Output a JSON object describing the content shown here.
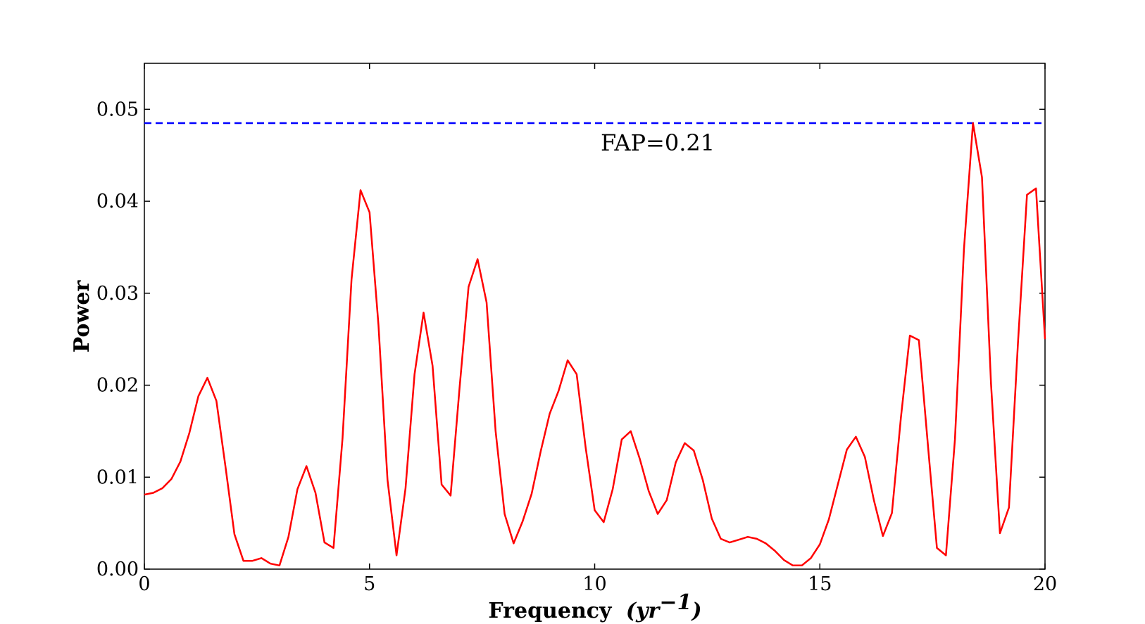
{
  "chart_data": {
    "type": "line",
    "xlabel": "Frequency",
    "xlabel_unit": "(yr",
    "xlabel_unit_sup": "−1",
    "xlabel_unit_close": ")",
    "ylabel": "Power",
    "xlim": [
      0,
      20
    ],
    "ylim": [
      0,
      0.055
    ],
    "xticks": [
      0,
      5,
      10,
      15,
      20
    ],
    "xtick_labels": [
      "0",
      "5",
      "10",
      "15",
      "20"
    ],
    "yticks": [
      0,
      0.01,
      0.02,
      0.03,
      0.04,
      0.05
    ],
    "ytick_labels": [
      "0.00",
      "0.01",
      "0.02",
      "0.03",
      "0.04",
      "0.05"
    ],
    "grid": false,
    "series": [
      {
        "color": "#ff0000",
        "x": [
          0,
          0.2,
          0.4,
          0.6,
          0.8,
          1.0,
          1.2,
          1.4,
          1.6,
          1.8,
          2.0,
          2.2,
          2.4,
          2.6,
          2.8,
          3.0,
          3.2,
          3.4,
          3.6,
          3.8,
          4.0,
          4.2,
          4.4,
          4.6,
          4.8,
          5.0,
          5.2,
          5.4,
          5.6,
          5.8,
          6.0,
          6.2,
          6.4,
          6.6,
          6.8,
          7.0,
          7.2,
          7.4,
          7.6,
          7.8,
          8.0,
          8.2,
          8.4,
          8.6,
          8.8,
          9.0,
          9.2,
          9.4,
          9.6,
          9.8,
          10.0,
          10.2,
          10.4,
          10.6,
          10.8,
          11.0,
          11.2,
          11.4,
          11.6,
          11.8,
          12.0,
          12.2,
          12.4,
          12.6,
          12.8,
          13.0,
          13.2,
          13.4,
          13.6,
          13.8,
          14.0,
          14.2,
          14.4,
          14.6,
          14.8,
          15.0,
          15.2,
          15.4,
          15.6,
          15.8,
          16.0,
          16.2,
          16.4,
          16.6,
          16.8,
          17.0,
          17.2,
          17.4,
          17.6,
          17.8,
          18.0,
          18.2,
          18.4,
          18.6,
          18.8,
          19.0,
          19.2,
          19.4,
          19.6,
          19.8,
          20.0
        ],
        "y": [
          0.0081,
          0.0083,
          0.0088,
          0.0098,
          0.0117,
          0.0148,
          0.0188,
          0.0208,
          0.0183,
          0.0112,
          0.0038,
          0.0009,
          0.0009,
          0.0012,
          0.0006,
          0.0004,
          0.0035,
          0.0087,
          0.0112,
          0.0083,
          0.0029,
          0.0023,
          0.0142,
          0.0315,
          0.0412,
          0.0388,
          0.0265,
          0.0097,
          0.0015,
          0.0088,
          0.0212,
          0.0279,
          0.0221,
          0.0092,
          0.008,
          0.0197,
          0.0307,
          0.0337,
          0.029,
          0.015,
          0.006,
          0.0028,
          0.0052,
          0.0082,
          0.0128,
          0.0169,
          0.0194,
          0.0227,
          0.0212,
          0.0132,
          0.0064,
          0.0051,
          0.0087,
          0.0141,
          0.015,
          0.012,
          0.0085,
          0.006,
          0.0075,
          0.0116,
          0.0137,
          0.0129,
          0.0097,
          0.0055,
          0.0033,
          0.0029,
          0.0032,
          0.0035,
          0.0033,
          0.0028,
          0.002,
          0.001,
          0.0004,
          0.0004,
          0.0012,
          0.0027,
          0.0054,
          0.0092,
          0.013,
          0.0144,
          0.0122,
          0.0075,
          0.0036,
          0.0061,
          0.0165,
          0.0254,
          0.0249,
          0.0135,
          0.0023,
          0.0015,
          0.0141,
          0.0348,
          0.0485,
          0.0426,
          0.0202,
          0.0039,
          0.0067,
          0.0246,
          0.0407,
          0.0414,
          0.025
        ]
      }
    ],
    "reference_line": {
      "y": 0.0485,
      "color": "#0000ff",
      "style": "dashed"
    },
    "annotations": [
      {
        "text": "FAP=0.21",
        "x": 11.4,
        "y": 0.0455
      }
    ]
  }
}
